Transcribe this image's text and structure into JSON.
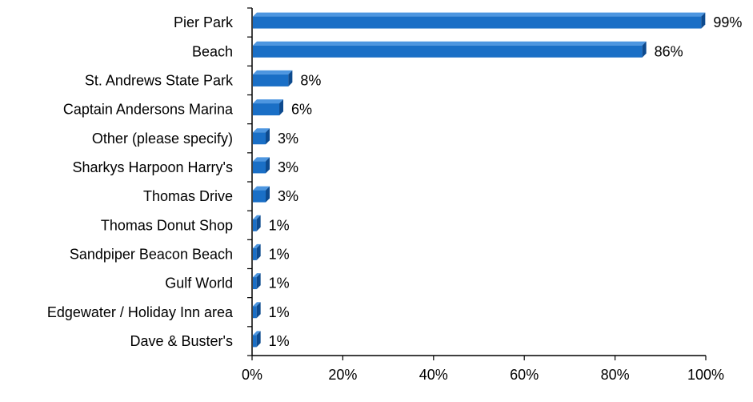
{
  "chart_data": {
    "type": "bar",
    "orientation": "horizontal",
    "style": "3d",
    "categories": [
      "Pier Park",
      "Beach",
      "St. Andrews State Park",
      "Captain Andersons Marina",
      "Other (please specify)",
      "Sharkys Harpoon Harry's",
      "Thomas Drive",
      "Thomas Donut Shop",
      "Sandpiper Beacon Beach",
      "Gulf World",
      "Edgewater / Holiday Inn area",
      "Dave & Buster's"
    ],
    "values": [
      99,
      86,
      8,
      6,
      3,
      3,
      3,
      1,
      1,
      1,
      1,
      1
    ],
    "value_labels": [
      "99%",
      "86%",
      "8%",
      "6%",
      "3%",
      "3%",
      "3%",
      "1%",
      "1%",
      "1%",
      "1%",
      "1%"
    ],
    "xlim": [
      0,
      100
    ],
    "xticks": [
      0,
      20,
      40,
      60,
      80,
      100
    ],
    "xtick_labels": [
      "0%",
      "20%",
      "40%",
      "60%",
      "80%",
      "100%"
    ],
    "title": "",
    "xlabel": "",
    "ylabel": "",
    "grid": false,
    "legend": "none",
    "colors": {
      "bar_front": "#1a6fc6",
      "bar_top": "#4d96e0",
      "bar_side": "#0d4a8e",
      "axis": "#000000"
    }
  }
}
